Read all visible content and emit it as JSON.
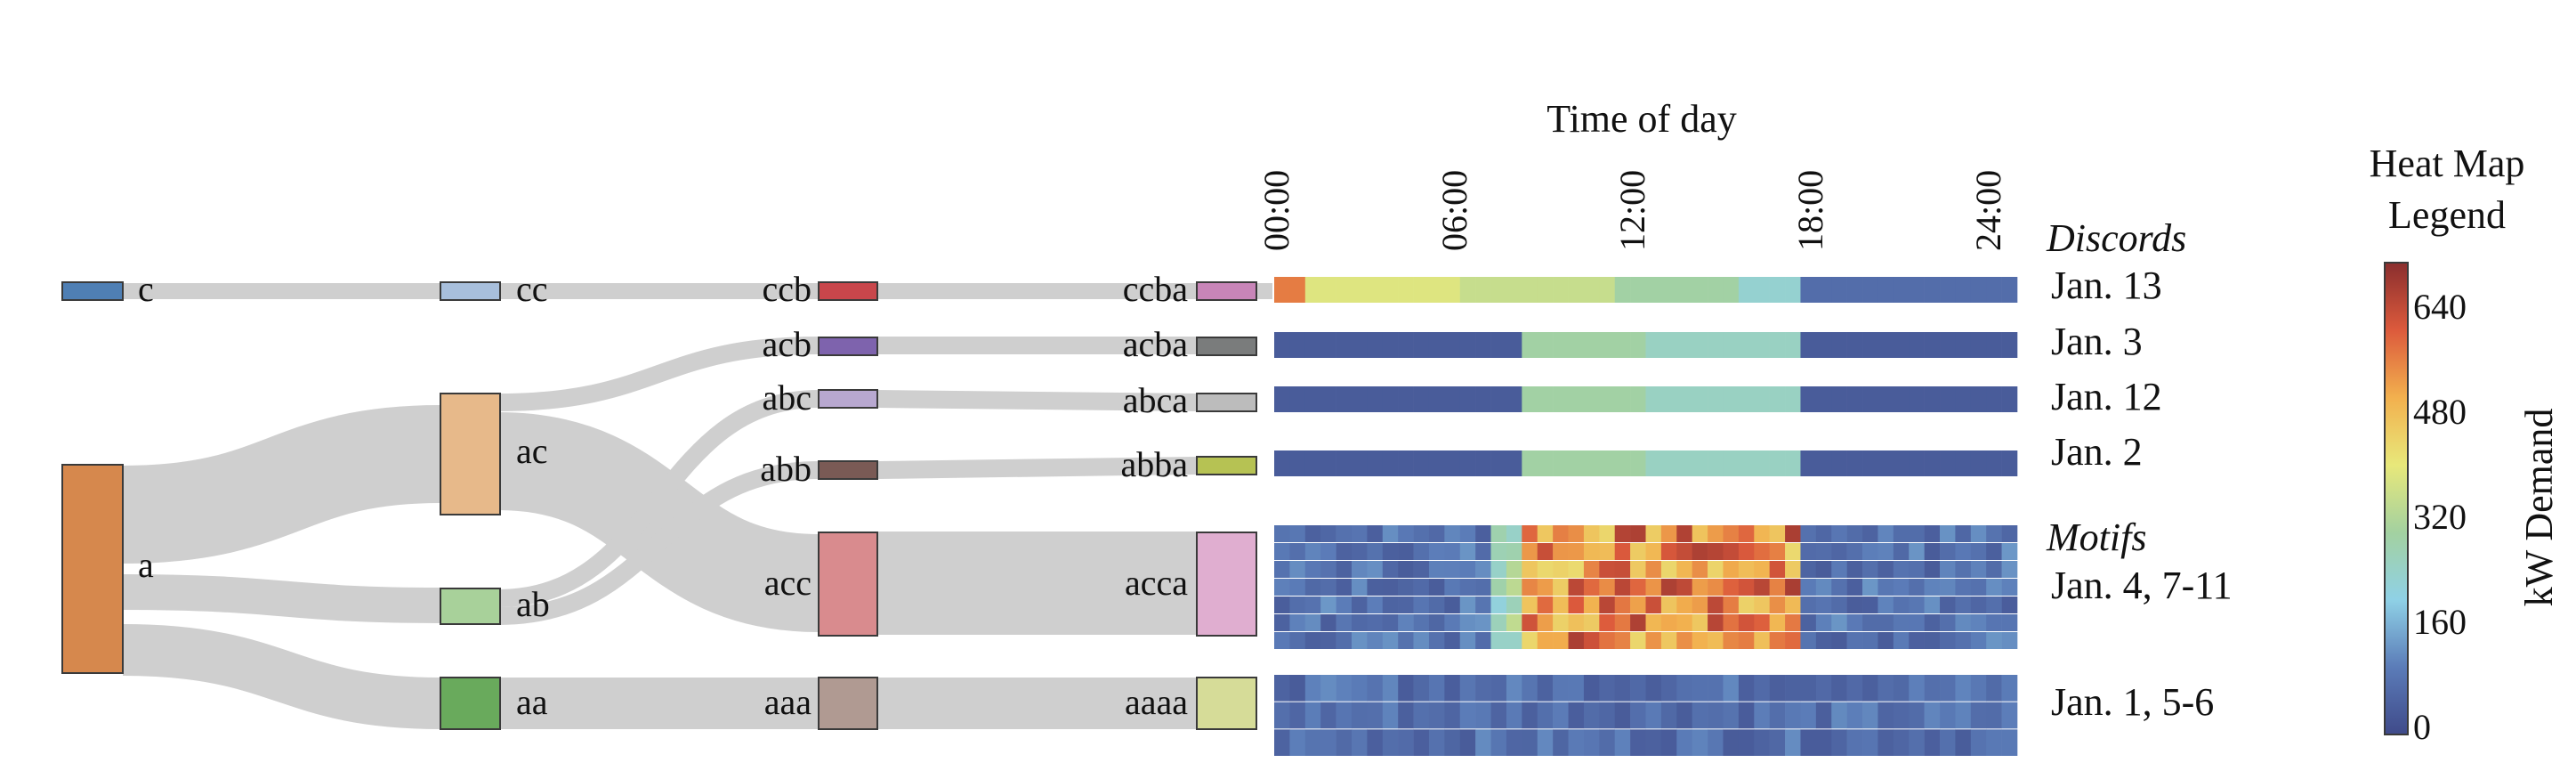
{
  "time_axis": {
    "title": "Time of day",
    "ticks": [
      "00:00",
      "06:00",
      "12:00",
      "18:00",
      "24:00"
    ]
  },
  "tree": {
    "level1": [
      {
        "label": "c",
        "color": "#4f7fb4"
      },
      {
        "label": "a",
        "color": "#d6884d"
      }
    ],
    "level2": [
      {
        "label": "cc",
        "color": "#a8bfdc"
      },
      {
        "label": "ac",
        "color": "#e7b98a"
      },
      {
        "label": "ab",
        "color": "#a8d19a"
      },
      {
        "label": "aa",
        "color": "#69aa5c"
      }
    ],
    "level3": [
      {
        "label": "ccb",
        "color": "#c9464b"
      },
      {
        "label": "acb",
        "color": "#7e63ad"
      },
      {
        "label": "abc",
        "color": "#b8a8d0"
      },
      {
        "label": "abb",
        "color": "#7a5a55"
      },
      {
        "label": "acc",
        "color": "#d98b8e"
      },
      {
        "label": "aaa",
        "color": "#b09a92"
      }
    ],
    "level4": [
      {
        "label": "ccba",
        "color": "#c885b8"
      },
      {
        "label": "acba",
        "color": "#7a7c7c"
      },
      {
        "label": "abca",
        "color": "#bcbcbc"
      },
      {
        "label": "abba",
        "color": "#b6c253"
      },
      {
        "label": "acca",
        "color": "#e0aed0"
      },
      {
        "label": "aaaa",
        "color": "#d6dc98"
      }
    ]
  },
  "groups": {
    "discords_title": "Discords",
    "motifs_title": "Motifs",
    "labels": [
      "Jan. 13",
      "Jan. 3",
      "Jan. 12",
      "Jan. 2",
      "Jan. 4, 7-11",
      "Jan. 1, 5-6"
    ]
  },
  "legend": {
    "title_line1": "Heat Map",
    "title_line2": "Legend",
    "axis_label": "kW Demand",
    "ticks": [
      "0",
      "160",
      "320",
      "480",
      "640"
    ],
    "colors": [
      "#3f4a8a",
      "#5b7cb8",
      "#8fd1e6",
      "#a3d1a0",
      "#e8e87a",
      "#f2b04e",
      "#dc5a3c",
      "#8a2e2e"
    ]
  }
}
